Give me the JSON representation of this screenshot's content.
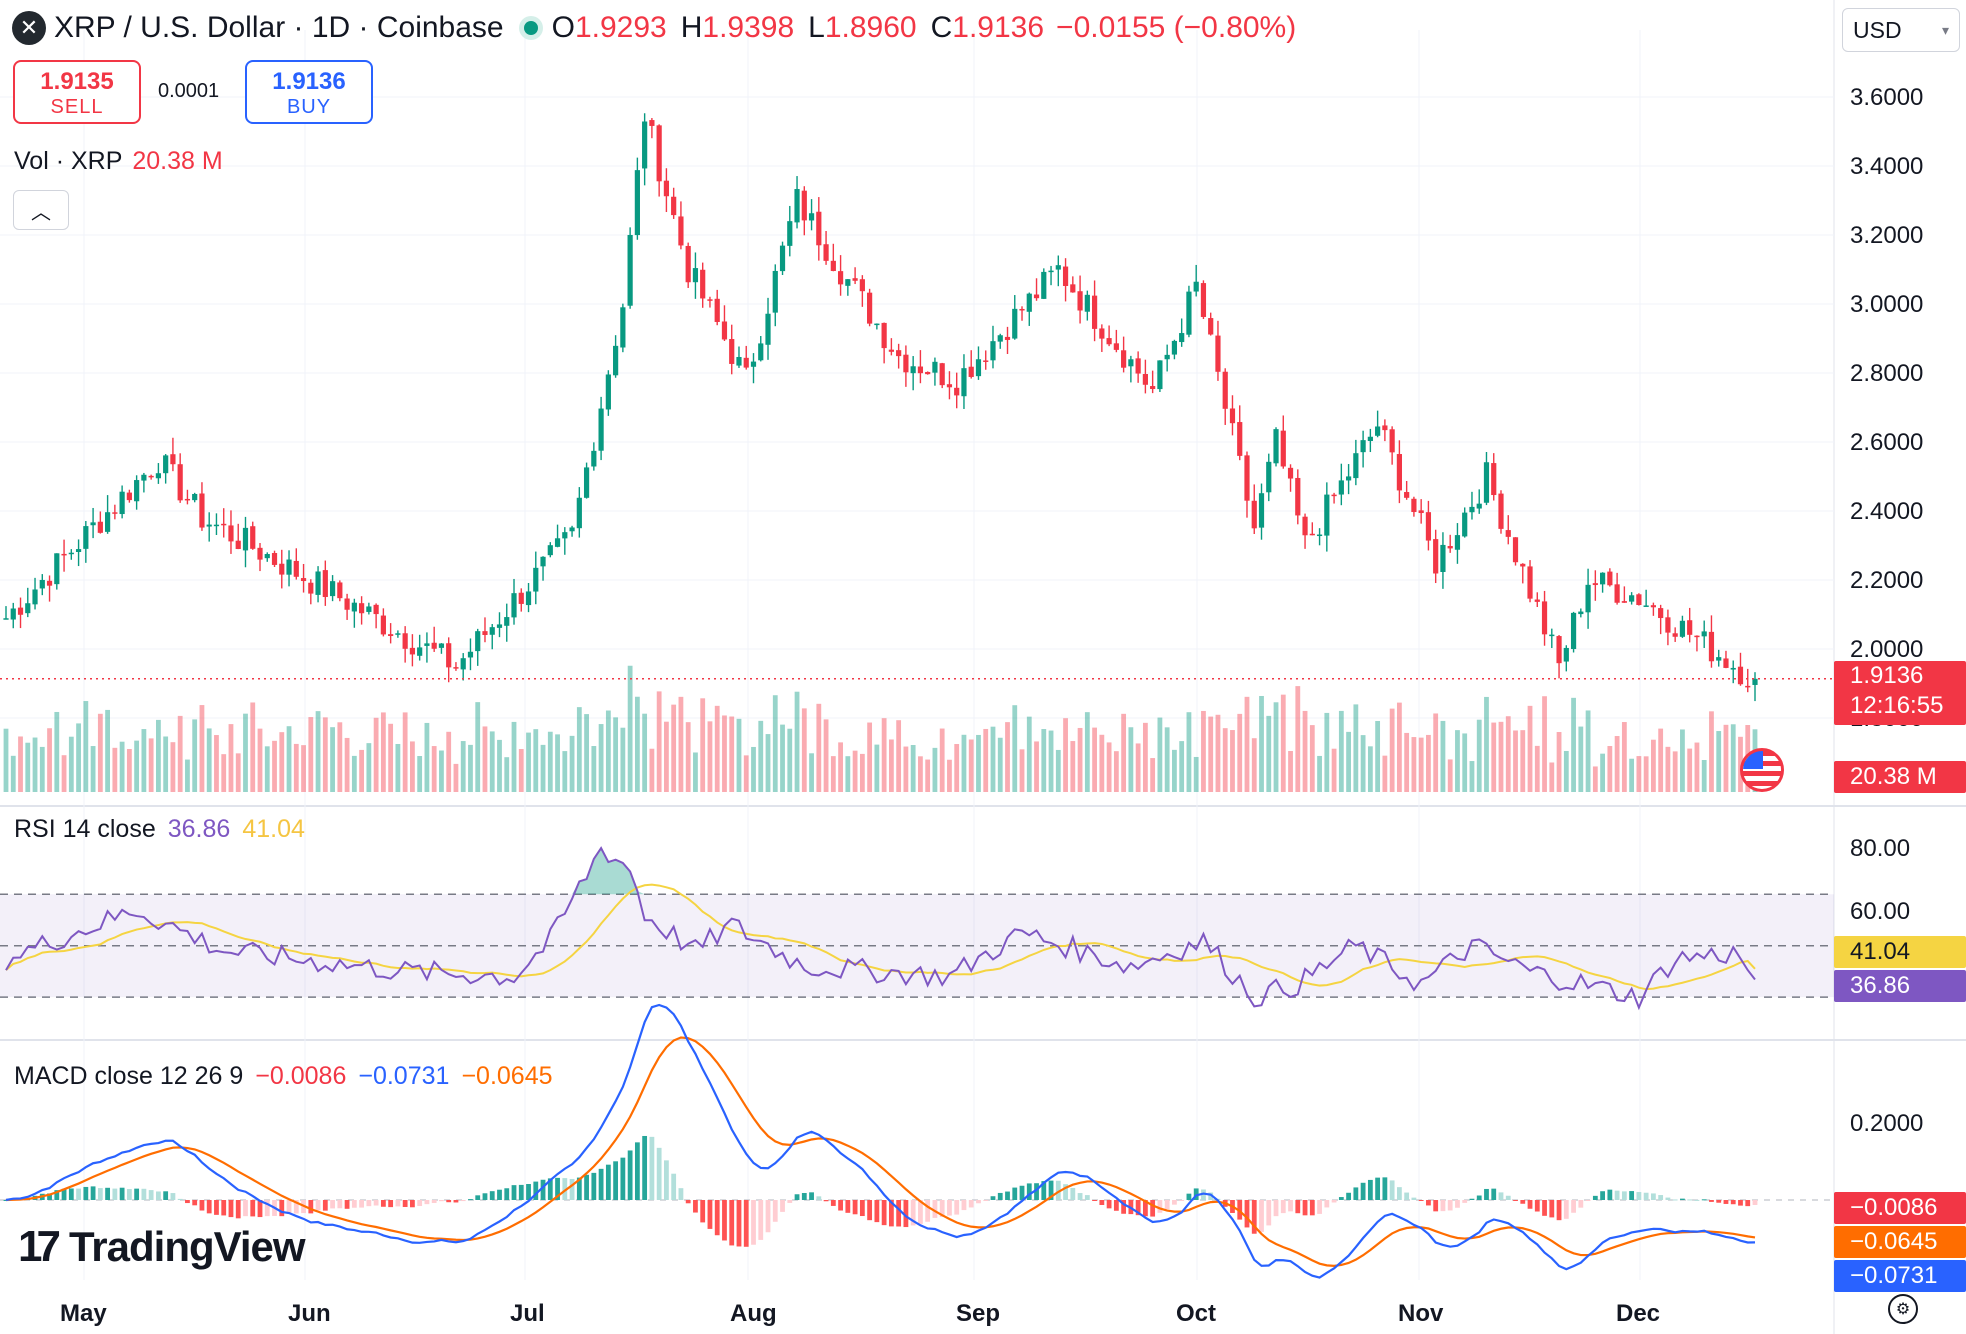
{
  "header": {
    "title": "XRP / U.S. Dollar · 1D · Coinbase",
    "o_label": "O",
    "o": "1.9293",
    "h_label": "H",
    "h": "1.9398",
    "l_label": "L",
    "l": "1.8960",
    "c_label": "C",
    "c": "1.9136",
    "change": "−0.0155 (−0.80%)"
  },
  "trade": {
    "sell_price": "1.9135",
    "sell_label": "SELL",
    "spread": "0.0001",
    "buy_price": "1.9136",
    "buy_label": "BUY"
  },
  "currency": "USD",
  "volume_legend": {
    "label": "Vol · XRP",
    "value": "20.38 M"
  },
  "rsi_legend": {
    "label": "RSI 14 close",
    "rsi": "36.86",
    "ma": "41.04"
  },
  "macd_legend": {
    "label": "MACD close 12 26 9",
    "hist": "−0.0086",
    "macd": "−0.0731",
    "signal": "−0.0645"
  },
  "price_axis": [
    "3.6000",
    "3.4000",
    "3.2000",
    "3.0000",
    "2.8000",
    "2.6000",
    "2.4000",
    "2.2000",
    "2.0000",
    "1.8000"
  ],
  "rsi_axis": [
    "80.00",
    "60.00"
  ],
  "macd_axis": [
    "0.2000"
  ],
  "tags": {
    "price": "1.9136",
    "countdown": "12:16:55",
    "volume": "20.38 M",
    "rsi_ma": "41.04",
    "rsi": "36.86",
    "hist": "−0.0086",
    "signal": "−0.0645",
    "macd": "−0.0731"
  },
  "months": [
    "May",
    "Jun",
    "Jul",
    "Aug",
    "Sep",
    "Oct",
    "Nov",
    "Dec"
  ],
  "brand": "TradingView",
  "colors": {
    "up": "#089981",
    "down": "#f23645",
    "rsi": "#7e57c2",
    "rsi_ma": "#f5d442",
    "macd": "#2962ff",
    "signal": "#ff6d00"
  },
  "chart_data": {
    "type": "candlestick",
    "title": "XRP / U.S. Dollar · 1D · Coinbase",
    "x_range": [
      "2025-04-21",
      "2025-12-18"
    ],
    "price_range": [
      1.75,
      3.75
    ],
    "last_close": 1.9136,
    "key_points": [
      {
        "date": "2025-04-21",
        "close": 2.09
      },
      {
        "date": "2025-05-12",
        "close": 2.55
      },
      {
        "date": "2025-05-18",
        "close": 2.38
      },
      {
        "date": "2025-06-06",
        "close": 2.15
      },
      {
        "date": "2025-06-22",
        "close": 1.95
      },
      {
        "date": "2025-07-08",
        "close": 2.33
      },
      {
        "date": "2025-07-15",
        "close": 3.0
      },
      {
        "date": "2025-07-18",
        "close": 3.55
      },
      {
        "date": "2025-07-24",
        "close": 3.1
      },
      {
        "date": "2025-08-01",
        "close": 2.78
      },
      {
        "date": "2025-08-08",
        "close": 3.3
      },
      {
        "date": "2025-08-14",
        "close": 3.1
      },
      {
        "date": "2025-08-22",
        "close": 2.85
      },
      {
        "date": "2025-08-30",
        "close": 2.78
      },
      {
        "date": "2025-09-13",
        "close": 3.1
      },
      {
        "date": "2025-09-26",
        "close": 2.75
      },
      {
        "date": "2025-10-02",
        "close": 3.05
      },
      {
        "date": "2025-10-10",
        "close": 2.35
      },
      {
        "date": "2025-10-13",
        "close": 2.6
      },
      {
        "date": "2025-10-17",
        "close": 2.3
      },
      {
        "date": "2025-10-27",
        "close": 2.65
      },
      {
        "date": "2025-11-04",
        "close": 2.25
      },
      {
        "date": "2025-11-11",
        "close": 2.5
      },
      {
        "date": "2025-11-21",
        "close": 1.95
      },
      {
        "date": "2025-11-25",
        "close": 2.2
      },
      {
        "date": "2025-12-02",
        "close": 2.15
      },
      {
        "date": "2025-12-18",
        "close": 1.91
      }
    ],
    "volume_last": "20.38 M",
    "rsi": {
      "period": 14,
      "last": 36.86,
      "ma_last": 41.04,
      "range": [
        25,
        95
      ],
      "key_points": [
        [
          0,
          45
        ],
        [
          18,
          64
        ],
        [
          30,
          48
        ],
        [
          55,
          40
        ],
        [
          70,
          38
        ],
        [
          75,
          52
        ],
        [
          82,
          88
        ],
        [
          86,
          80
        ],
        [
          88,
          62
        ],
        [
          95,
          48
        ],
        [
          100,
          58
        ],
        [
          110,
          42
        ],
        [
          130,
          38
        ],
        [
          140,
          55
        ],
        [
          155,
          42
        ],
        [
          165,
          52
        ],
        [
          172,
          30
        ],
        [
          178,
          35
        ],
        [
          186,
          50
        ],
        [
          195,
          35
        ],
        [
          202,
          50
        ],
        [
          210,
          40
        ],
        [
          225,
          30
        ],
        [
          230,
          45
        ],
        [
          238,
          47
        ],
        [
          242,
          36.86
        ]
      ]
    },
    "macd": {
      "fast": 12,
      "slow": 26,
      "signal": 9,
      "hist_last": -0.0086,
      "macd_last": -0.0731,
      "signal_last": -0.0645
    }
  }
}
